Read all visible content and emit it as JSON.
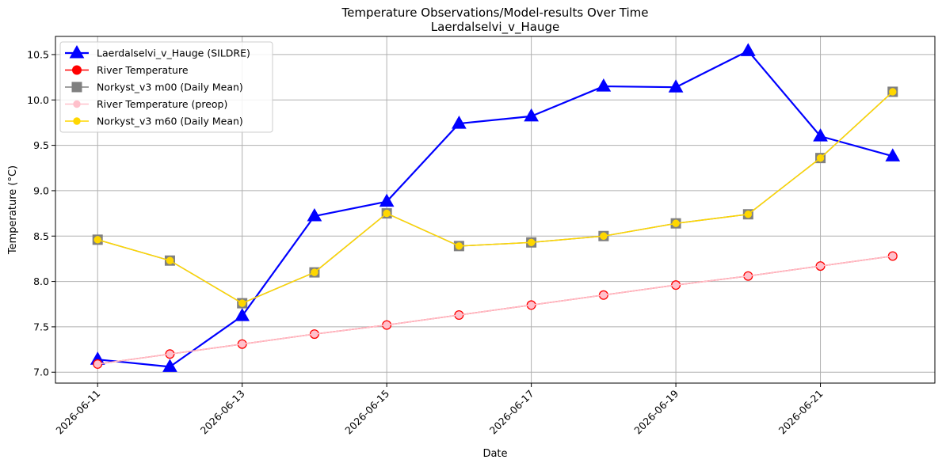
{
  "chart_data": {
    "type": "line",
    "title": "Temperature Observations/Model-results Over Time",
    "subtitle": "Laerdalselvi_v_Hauge",
    "xlabel": "Date",
    "ylabel": "Temperature (°C)",
    "x": [
      "2026-06-11",
      "2026-06-12",
      "2026-06-13",
      "2026-06-14",
      "2026-06-15",
      "2026-06-16",
      "2026-06-17",
      "2026-06-18",
      "2026-06-19",
      "2026-06-20",
      "2026-06-21",
      "2026-06-22"
    ],
    "x_tick_labels": [
      "2026-06-11",
      "2026-06-13",
      "2026-06-15",
      "2026-06-17",
      "2026-06-19",
      "2026-06-21"
    ],
    "y_ticks": [
      "7.0",
      "7.5",
      "8.0",
      "8.5",
      "9.0",
      "9.5",
      "10.0",
      "10.5"
    ],
    "xlim": [
      "2026-06-10T10:00",
      "2026-06-22T14:00"
    ],
    "ylim": [
      6.88,
      10.7
    ],
    "grid": true,
    "legend_position": "top-left",
    "series": [
      {
        "name": "Laerdalselvi_v_Hauge (SILDRE)",
        "color": "#0000ff",
        "marker": "triangle",
        "values": [
          7.14,
          7.06,
          7.62,
          8.72,
          8.88,
          9.74,
          9.82,
          10.15,
          10.14,
          10.54,
          9.6,
          9.38
        ]
      },
      {
        "name": "River Temperature",
        "color": "#ff0000",
        "marker": "circle",
        "values": [
          7.09,
          7.2,
          7.31,
          7.42,
          7.52,
          7.63,
          7.74,
          7.85,
          7.96,
          8.06,
          8.17,
          8.28
        ]
      },
      {
        "name": "Norkyst_v3 m00 (Daily Mean)",
        "color": "#808080",
        "marker": "square",
        "values": [
          8.46,
          8.23,
          7.76,
          8.1,
          8.75,
          8.39,
          8.43,
          8.5,
          8.64,
          8.74,
          9.36,
          10.09
        ]
      },
      {
        "name": "River Temperature (preop)",
        "color": "#ffc0cb",
        "marker": "small-circle",
        "values": [
          7.09,
          7.2,
          7.31,
          7.42,
          7.52,
          7.63,
          7.74,
          7.85,
          7.96,
          8.06,
          8.17,
          8.28
        ]
      },
      {
        "name": "Norkyst_v3 m60 (Daily Mean)",
        "color": "#ffd700",
        "marker": "small-circle",
        "values": [
          8.46,
          8.23,
          7.76,
          8.1,
          8.75,
          8.39,
          8.43,
          8.5,
          8.64,
          8.74,
          9.36,
          10.09
        ]
      }
    ]
  }
}
